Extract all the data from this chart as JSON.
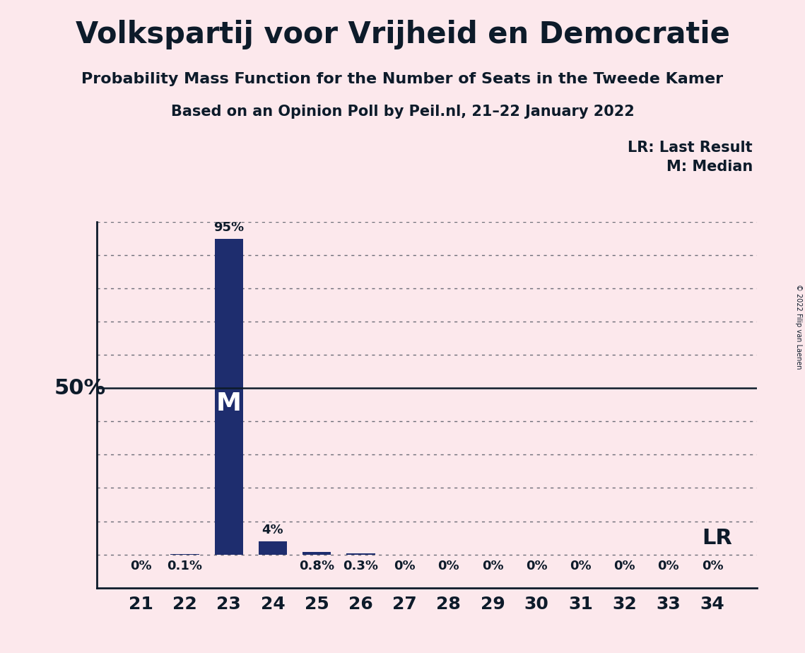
{
  "title": "Volkspartij voor Vrijheid en Democratie",
  "subtitle1": "Probability Mass Function for the Number of Seats in the Tweede Kamer",
  "subtitle2": "Based on an Opinion Poll by Peil.nl, 21–22 January 2022",
  "copyright": "© 2022 Filip van Laenen",
  "categories": [
    21,
    22,
    23,
    24,
    25,
    26,
    27,
    28,
    29,
    30,
    31,
    32,
    33,
    34
  ],
  "values": [
    0.0,
    0.1,
    95.0,
    4.0,
    0.8,
    0.3,
    0.0,
    0.0,
    0.0,
    0.0,
    0.0,
    0.0,
    0.0,
    0.0
  ],
  "labels": [
    "0%",
    "0.1%",
    "95%",
    "4%",
    "0.8%",
    "0.3%",
    "0%",
    "0%",
    "0%",
    "0%",
    "0%",
    "0%",
    "0%",
    "0%"
  ],
  "bar_color": "#1e2d6e",
  "median_seat": 23,
  "lr_seat": 34,
  "background_color": "#fce8ec",
  "text_color": "#0d1b2a",
  "ylim_max": 100,
  "fifty_pct": 50,
  "legend_lr": "LR: Last Result",
  "legend_m": "M: Median"
}
